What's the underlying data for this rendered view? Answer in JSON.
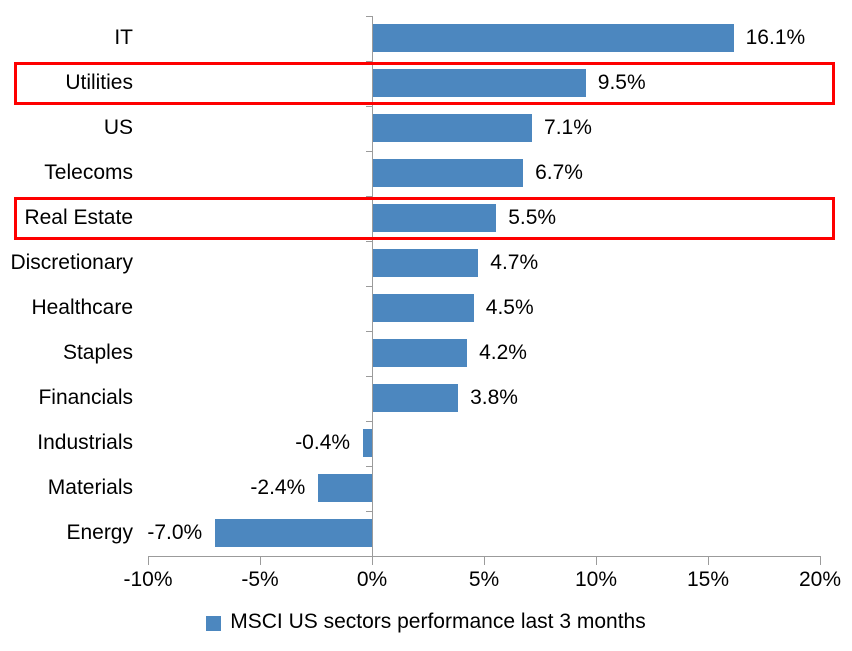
{
  "chart_data": {
    "type": "bar",
    "orientation": "horizontal",
    "title": "",
    "xlabel": "",
    "ylabel": "",
    "categories": [
      "IT",
      "Utilities",
      "US",
      "Telecoms",
      "Real Estate",
      "Discretionary",
      "Healthcare",
      "Staples",
      "Financials",
      "Industrials",
      "Materials",
      "Energy"
    ],
    "values": [
      16.1,
      9.5,
      7.1,
      6.7,
      5.5,
      4.7,
      4.5,
      4.2,
      3.8,
      -0.4,
      -2.4,
      -7.0
    ],
    "value_labels": [
      "16.1%",
      "9.5%",
      "7.1%",
      "6.7%",
      "5.5%",
      "4.7%",
      "4.5%",
      "4.2%",
      "3.8%",
      "-0.4%",
      "-2.4%",
      "-7.0%"
    ],
    "highlighted_categories": [
      "Utilities",
      "Real Estate"
    ],
    "xlim": [
      -10,
      20
    ],
    "x_tick_values": [
      -10,
      -5,
      0,
      5,
      10,
      15,
      20
    ],
    "x_tick_labels": [
      "-10%",
      "-5%",
      "0%",
      "5%",
      "10%",
      "15%",
      "20%"
    ],
    "grid": false,
    "legend": "MSCI US sectors performance last 3 months",
    "legend_position": "bottom",
    "colors": {
      "bar": "#4c87bf",
      "highlight_box": "#fe0000",
      "axis": "#9b9b9b",
      "text": "#000000",
      "background": "#ffffff"
    }
  }
}
